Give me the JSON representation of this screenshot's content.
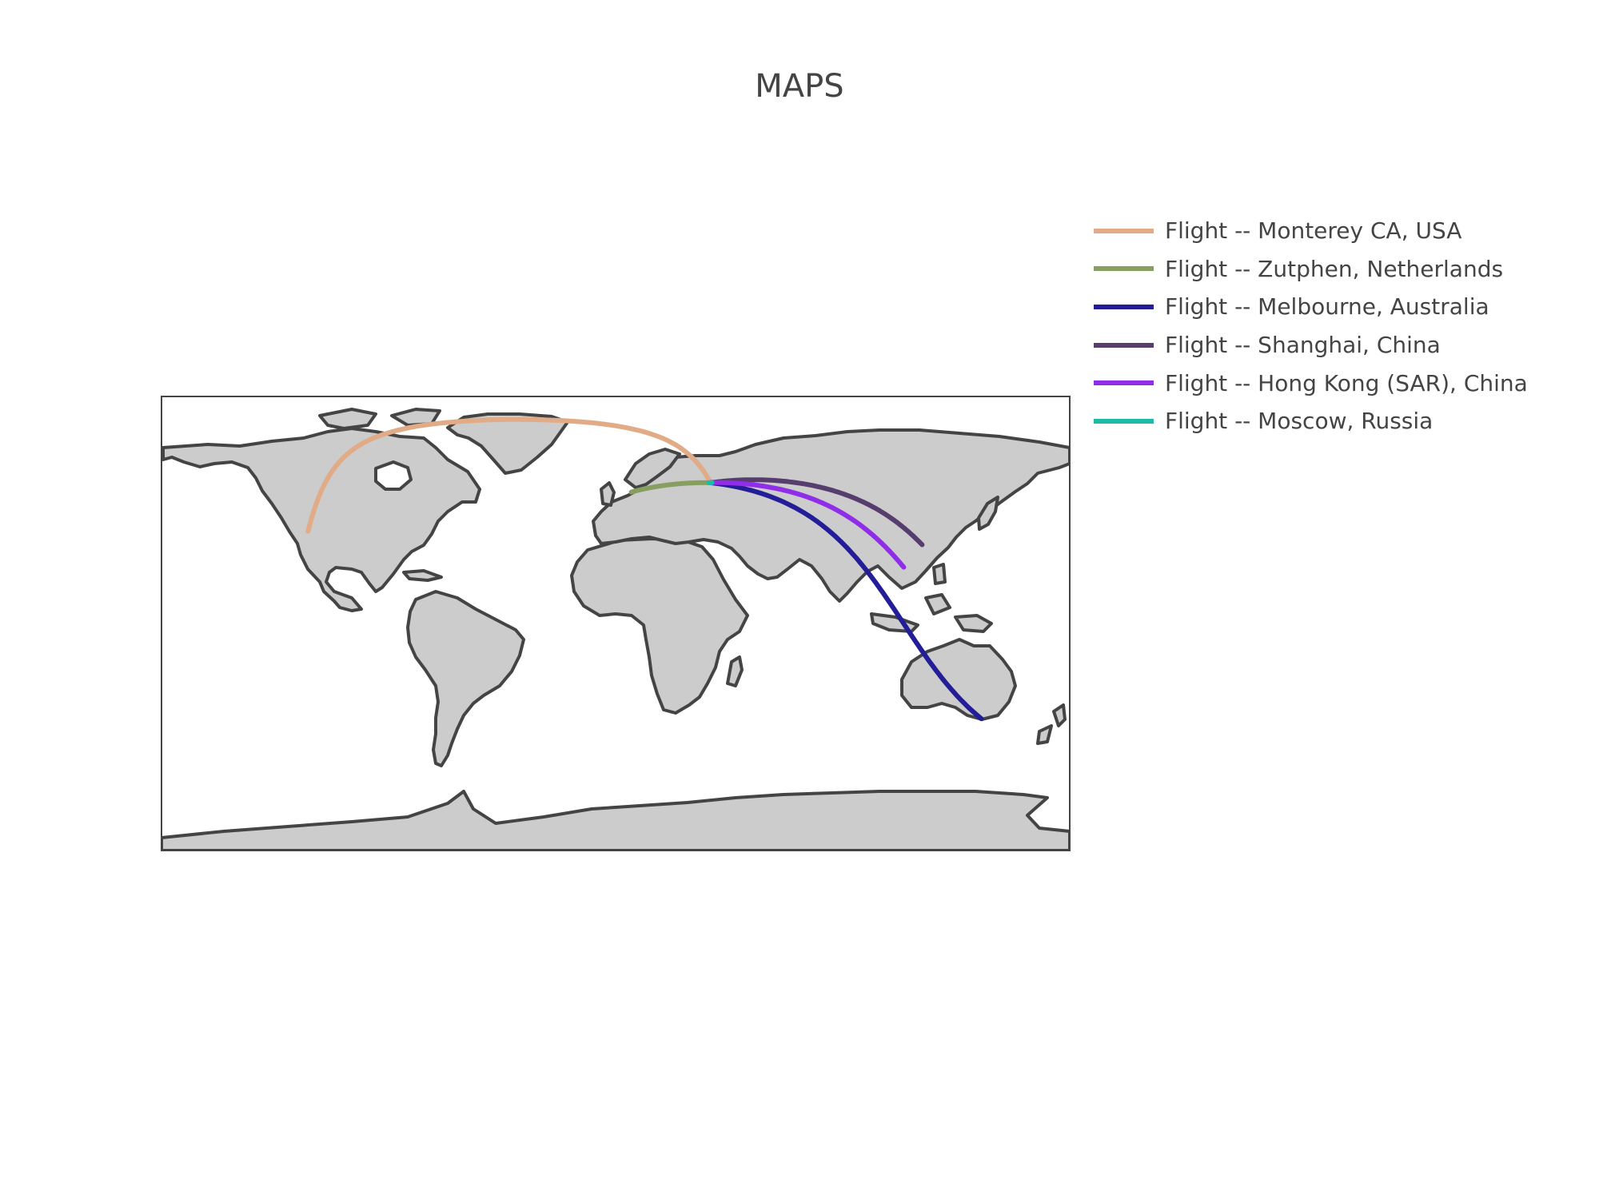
{
  "chart_data": {
    "type": "map",
    "title": "MAPS",
    "projection": "equirectangular",
    "land_color": "#cccccc",
    "coastline_color": "#444444",
    "frame_color": "#444444",
    "lataxis_range": [
      -90,
      90
    ],
    "lonaxis_range": [
      -180,
      180
    ],
    "legend_placement": "top-right",
    "hub": {
      "lon": 37.6,
      "lat": 55.8
    },
    "series": [
      {
        "name": "Flight -- Monterey CA, USA",
        "color": "#e1ab87",
        "lon": [
          37.6,
          -121.9
        ],
        "lat": [
          55.8,
          36.6
        ]
      },
      {
        "name": "Flight -- Zutphen, Netherlands",
        "color": "#869f61",
        "lon": [
          37.6,
          6.2
        ],
        "lat": [
          55.8,
          52.1
        ]
      },
      {
        "name": "Flight -- Melbourne, Australia",
        "color": "#231e98",
        "lon": [
          37.6,
          145.0
        ],
        "lat": [
          55.8,
          -37.8
        ]
      },
      {
        "name": "Flight -- Shanghai, China",
        "color": "#563d6e",
        "lon": [
          37.6,
          121.5
        ],
        "lat": [
          55.8,
          31.2
        ]
      },
      {
        "name": "Flight -- Hong Kong (SAR), China",
        "color": "#902de9",
        "lon": [
          37.6,
          114.2
        ],
        "lat": [
          55.8,
          22.3
        ]
      },
      {
        "name": "Flight -- Moscow, Russia",
        "color": "#1ebba8",
        "lon": [
          37.6,
          37.6
        ],
        "lat": [
          55.8,
          55.8
        ]
      }
    ]
  }
}
